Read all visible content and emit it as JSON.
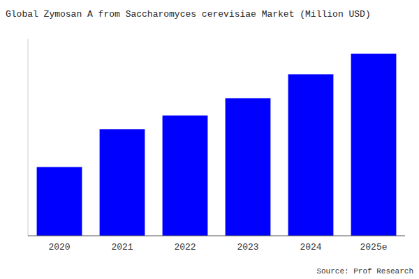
{
  "chart_data": {
    "type": "bar",
    "title": "Global Zymosan A from Saccharomyces cerevisiae Market (Million USD)",
    "categories": [
      "2020",
      "2021",
      "2022",
      "2023",
      "2024",
      "2025e"
    ],
    "values": [
      1.0,
      1.55,
      1.75,
      2.0,
      2.35,
      2.65
    ],
    "color": "#0000FF",
    "ylim": [
      0,
      2.862
    ],
    "grid": false,
    "tick_labels": "x",
    "annotations": [
      "Source: Prof Research"
    ]
  }
}
